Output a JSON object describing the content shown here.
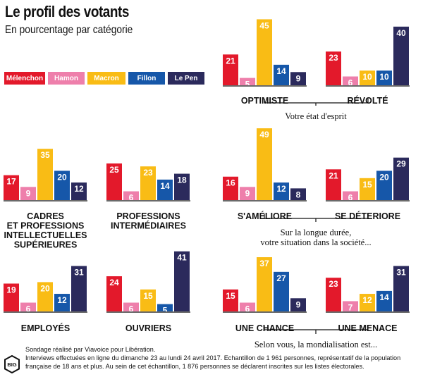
{
  "title": "Le profil des votants",
  "subtitle": "En pourcentage par catégorie",
  "legend": [
    {
      "name": "Mélenchon",
      "color": "#e3192b"
    },
    {
      "name": "Hamon",
      "color": "#ee7fab"
    },
    {
      "name": "Macron",
      "color": "#f9bc15"
    },
    {
      "name": "Fillon",
      "color": "#1657a9"
    },
    {
      "name": "Le Pen",
      "color": "#2b2a5c"
    }
  ],
  "groups": [
    {
      "text": "Votre état d'esprit"
    },
    {
      "text": "Sur la longue durée,\nvotre situation dans la société..."
    },
    {
      "text": "Selon vous, la mondialisation est..."
    }
  ],
  "chart_data": [
    {
      "type": "bar",
      "label": "OPTIMISTE",
      "categories": [
        "Mélenchon",
        "Hamon",
        "Macron",
        "Fillon",
        "Le Pen"
      ],
      "values": [
        21,
        5,
        45,
        14,
        9
      ]
    },
    {
      "type": "bar",
      "label": "RÉVOLTÉ",
      "categories": [
        "Mélenchon",
        "Hamon",
        "Macron",
        "Fillon",
        "Le Pen"
      ],
      "values": [
        23,
        6,
        10,
        10,
        40
      ]
    },
    {
      "type": "bar",
      "label": "CADRES\nET PROFESSIONS\nINTELLECTUELLES\nSUPÉRIEURES",
      "categories": [
        "Mélenchon",
        "Hamon",
        "Macron",
        "Fillon",
        "Le Pen"
      ],
      "values": [
        17,
        9,
        35,
        20,
        12
      ]
    },
    {
      "type": "bar",
      "label": "PROFESSIONS\nINTERMÉDIAIRES",
      "categories": [
        "Mélenchon",
        "Hamon",
        "Macron",
        "Fillon",
        "Le Pen"
      ],
      "values": [
        25,
        6,
        23,
        14,
        18
      ]
    },
    {
      "type": "bar",
      "label": "S'AMÉLIORE",
      "categories": [
        "Mélenchon",
        "Hamon",
        "Macron",
        "Fillon",
        "Le Pen"
      ],
      "values": [
        16,
        9,
        49,
        12,
        8
      ]
    },
    {
      "type": "bar",
      "label": "SE DÉTERIORE",
      "categories": [
        "Mélenchon",
        "Hamon",
        "Macron",
        "Fillon",
        "Le Pen"
      ],
      "values": [
        21,
        6,
        15,
        20,
        29
      ]
    },
    {
      "type": "bar",
      "label": "EMPLOYÉS",
      "categories": [
        "Mélenchon",
        "Hamon",
        "Macron",
        "Fillon",
        "Le Pen"
      ],
      "values": [
        19,
        6,
        20,
        12,
        31
      ]
    },
    {
      "type": "bar",
      "label": "OUVRIERS",
      "categories": [
        "Mélenchon",
        "Hamon",
        "Macron",
        "Fillon",
        "Le Pen"
      ],
      "values": [
        24,
        6,
        15,
        5,
        41
      ]
    },
    {
      "type": "bar",
      "label": "UNE CHANCE",
      "categories": [
        "Mélenchon",
        "Hamon",
        "Macron",
        "Fillon",
        "Le Pen"
      ],
      "values": [
        15,
        6,
        37,
        27,
        9
      ]
    },
    {
      "type": "bar",
      "label": "UNE MENACE",
      "categories": [
        "Mélenchon",
        "Hamon",
        "Macron",
        "Fillon",
        "Le Pen"
      ],
      "values": [
        23,
        7,
        12,
        14,
        31
      ]
    }
  ],
  "footer": {
    "line1": "Sondage réalisé par Viavoice pour Libération.",
    "line2": "Interviews effectuées en ligne du dimanche 23 au lundi 24 avril 2017. Echantillon de 1 961 personnes, représentatif de la population",
    "line3": "française de 18 ans et plus. Au sein de cet échantillon, 1 876 personnes se déclarent inscrites sur les listes électorales."
  },
  "logo_text": "BIG"
}
